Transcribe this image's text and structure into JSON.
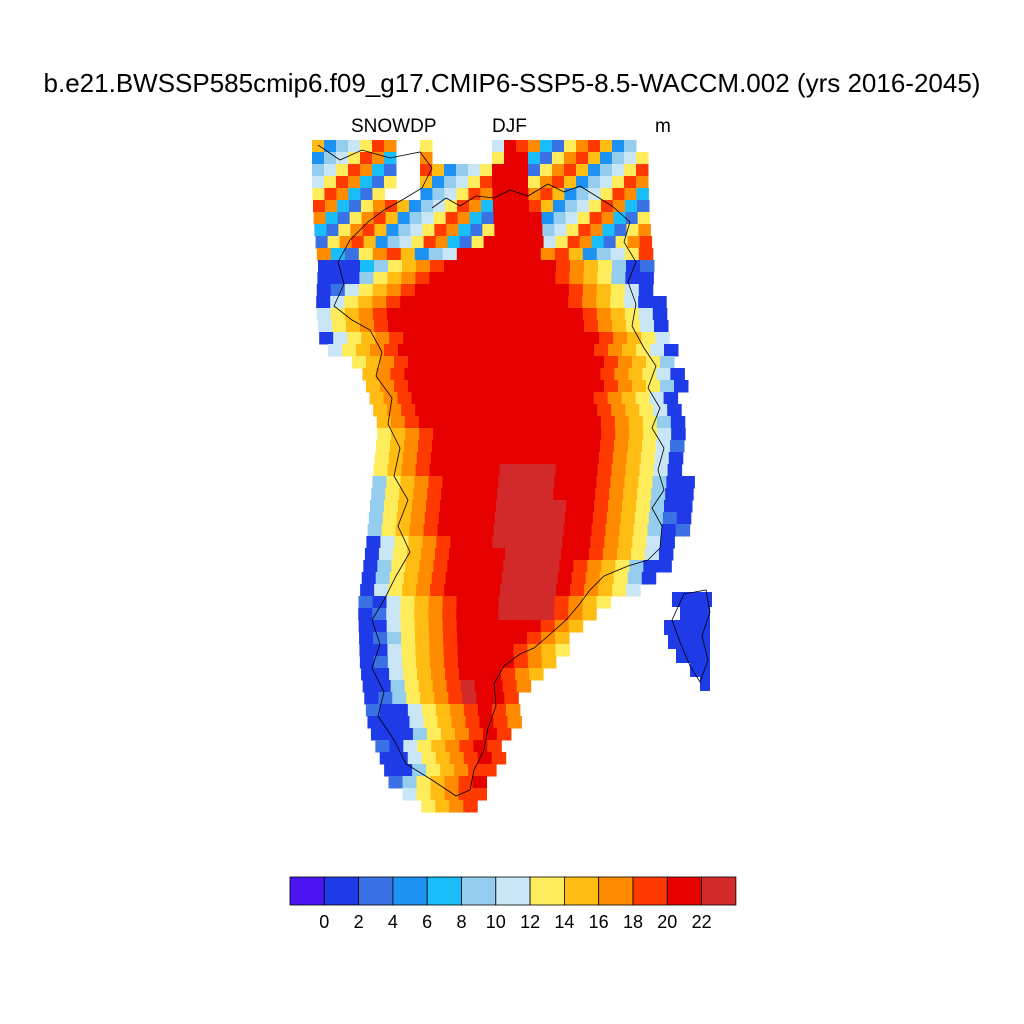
{
  "figure": {
    "title": "b.e21.BWSSP585cmip6.f09_g17.CMIP6-SSP5-8.5-WACCM.002 (yrs 2016-2045)",
    "variable": "SNOWDP",
    "season": "DJF",
    "units": "m"
  },
  "colorbar": {
    "colors": [
      "#4b16f2",
      "#1f3be8",
      "#3a72e6",
      "#1d92f3",
      "#19bdf8",
      "#95cdef",
      "#c9e6f6",
      "#ffec5a",
      "#ffbd14",
      "#ff8c00",
      "#ff3a00",
      "#e60000",
      "#d22a2a"
    ],
    "tick_labels": [
      "0",
      "2",
      "4",
      "6",
      "8",
      "10",
      "12",
      "14",
      "16",
      "18",
      "20",
      "22"
    ]
  },
  "chart_data": {
    "type": "heatmap",
    "title": "b.e21.BWSSP585cmip6.f09_g17.CMIP6-SSP5-8.5-WACCM.002 (yrs 2016-2045)",
    "variable": "SNOWDP",
    "season": "DJF",
    "units": "m",
    "levels": [
      0,
      2,
      4,
      6,
      8,
      10,
      12,
      14,
      16,
      18,
      20,
      22
    ],
    "region": "Greenland",
    "pattern": "interior ice sheet ~20-22+ m (deep red), coastal fringe 0-4 m (blue), transition band 8-18 m"
  }
}
